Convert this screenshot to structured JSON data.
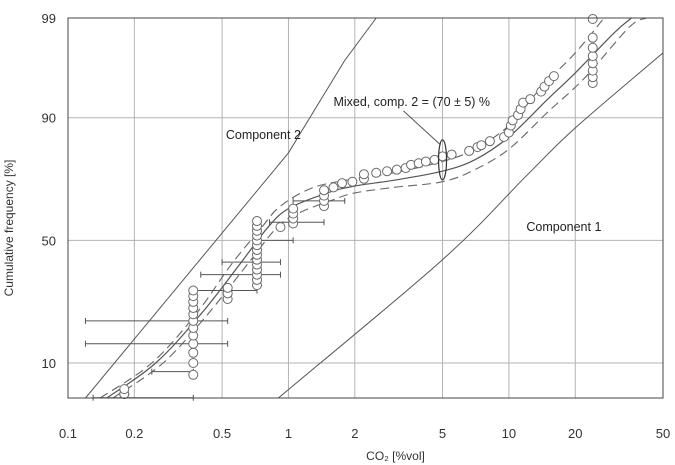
{
  "chart_data": {
    "type": "scatter",
    "title": "",
    "xlabel": "CO₂ [%vol]",
    "ylabel": "Cumulative frequency [%]",
    "x_scale": "log",
    "y_scale": "probability",
    "xlim": [
      0.1,
      50
    ],
    "ylim": [
      3,
      99
    ],
    "x_ticks": [
      0.1,
      0.2,
      0.5,
      1,
      2,
      5,
      10,
      20,
      50
    ],
    "x_tick_labels": [
      "0.1",
      "0.2",
      "0.5",
      "1",
      "2",
      "5",
      "10",
      "20",
      "50"
    ],
    "y_ticks": [
      10,
      50,
      90,
      99
    ],
    "y_tick_labels": [
      "10",
      "50",
      "90",
      "99"
    ],
    "grid": true,
    "series": [
      {
        "name": "",
        "kind": "points",
        "points": [
          [
            0.18,
            3.0
          ],
          [
            0.18,
            4.0
          ],
          [
            0.18,
            5.0
          ],
          [
            0.18,
            6.0
          ],
          [
            0.37,
            8.0
          ],
          [
            0.37,
            10.0
          ],
          [
            0.37,
            12.0
          ],
          [
            0.37,
            14.0
          ],
          [
            0.37,
            16.0
          ],
          [
            0.37,
            18.0
          ],
          [
            0.37,
            20.0
          ],
          [
            0.37,
            22.0
          ],
          [
            0.37,
            24.0
          ],
          [
            0.37,
            26.0
          ],
          [
            0.37,
            28.0
          ],
          [
            0.37,
            30.0
          ],
          [
            0.53,
            27.0
          ],
          [
            0.53,
            29.0
          ],
          [
            0.53,
            31.0
          ],
          [
            0.72,
            32.0
          ],
          [
            0.72,
            34.0
          ],
          [
            0.72,
            36.0
          ],
          [
            0.72,
            38.0
          ],
          [
            0.72,
            40.0
          ],
          [
            0.72,
            42.0
          ],
          [
            0.72,
            44.0
          ],
          [
            0.72,
            46.0
          ],
          [
            0.72,
            48.0
          ],
          [
            0.72,
            50.0
          ],
          [
            0.72,
            52.0
          ],
          [
            0.72,
            54.0
          ],
          [
            0.72,
            56.0
          ],
          [
            0.72,
            58.0
          ],
          [
            0.92,
            55.5
          ],
          [
            1.05,
            57.0
          ],
          [
            1.05,
            59.0
          ],
          [
            1.05,
            61.0
          ],
          [
            1.05,
            63.0
          ],
          [
            1.45,
            64.0
          ],
          [
            1.45,
            66.0
          ],
          [
            1.45,
            68.0
          ],
          [
            1.45,
            70.0
          ],
          [
            1.6,
            71.0
          ],
          [
            1.75,
            72.5
          ],
          [
            1.95,
            73.0
          ],
          [
            2.2,
            74.0
          ],
          [
            2.2,
            75.5
          ],
          [
            2.5,
            76.0
          ],
          [
            2.8,
            76.5
          ],
          [
            3.1,
            77.0
          ],
          [
            3.4,
            77.5
          ],
          [
            3.6,
            78.5
          ],
          [
            3.9,
            79.0
          ],
          [
            4.2,
            79.5
          ],
          [
            4.6,
            80.0
          ],
          [
            5.0,
            81.0
          ],
          [
            5.5,
            81.5
          ],
          [
            6.6,
            82.5
          ],
          [
            7.2,
            83.5
          ],
          [
            7.5,
            84.0
          ],
          [
            8.2,
            85.0
          ],
          [
            9.5,
            86.0
          ],
          [
            10.0,
            87.0
          ],
          [
            10.2,
            88.5
          ],
          [
            10.4,
            89.5
          ],
          [
            11.0,
            90.5
          ],
          [
            11.3,
            91.5
          ],
          [
            11.6,
            92.5
          ],
          [
            12.5,
            93.0
          ],
          [
            14.0,
            94.0
          ],
          [
            14.5,
            94.6
          ],
          [
            15.2,
            95.2
          ],
          [
            16.0,
            95.7
          ],
          [
            24.0,
            95.0
          ],
          [
            24.0,
            95.6
          ],
          [
            24.0,
            96.2
          ],
          [
            24.0,
            96.8
          ],
          [
            24.0,
            97.3
          ],
          [
            24.0,
            97.8
          ],
          [
            24.0,
            98.3
          ],
          [
            24.0,
            99.0
          ]
        ],
        "error_bars": [
          {
            "y": 5.0,
            "x_low": 0.13,
            "x_high": 0.37
          },
          {
            "y": 8.5,
            "x_low": 0.24,
            "x_high": 0.37
          },
          {
            "y": 14.0,
            "x_low": 0.12,
            "x_high": 0.53
          },
          {
            "y": 20.0,
            "x_low": 0.12,
            "x_high": 0.53
          },
          {
            "y": 30.0,
            "x_low": 0.37,
            "x_high": 0.72
          },
          {
            "y": 36.0,
            "x_low": 0.4,
            "x_high": 0.92
          },
          {
            "y": 41.0,
            "x_low": 0.5,
            "x_high": 0.92
          },
          {
            "y": 50.0,
            "x_low": 0.72,
            "x_high": 1.05
          },
          {
            "y": 57.5,
            "x_low": 0.82,
            "x_high": 1.45
          },
          {
            "y": 66.0,
            "x_low": 1.05,
            "x_high": 1.8
          }
        ]
      },
      {
        "name": "Component 2",
        "kind": "line",
        "points": [
          [
            0.12,
            3.0
          ],
          [
            1.0,
            82.0
          ],
          [
            1.25,
            90.0
          ],
          [
            1.8,
            97.0
          ],
          [
            2.5,
            99.0
          ]
        ]
      },
      {
        "name": "Component 1",
        "kind": "line",
        "points": [
          [
            0.9,
            3.0
          ],
          [
            5.0,
            42.0
          ],
          [
            12.0,
            75.0
          ],
          [
            20.0,
            88.0
          ],
          [
            50.0,
            97.5
          ]
        ]
      },
      {
        "name": "Mixed, comp. 2 = (70 ± 5) %",
        "kind": "line",
        "points": [
          [
            0.15,
            3.0
          ],
          [
            0.25,
            10.0
          ],
          [
            0.4,
            22.0
          ],
          [
            0.6,
            40.0
          ],
          [
            0.8,
            55.0
          ],
          [
            1.0,
            63.0
          ],
          [
            1.5,
            69.0
          ],
          [
            2.0,
            71.5
          ],
          [
            3.0,
            73.5
          ],
          [
            5.0,
            76.5
          ],
          [
            7.0,
            80.0
          ],
          [
            10.0,
            86.0
          ],
          [
            15.0,
            93.0
          ],
          [
            20.0,
            96.0
          ],
          [
            30.0,
            98.5
          ],
          [
            36.0,
            99.0
          ]
        ]
      },
      {
        "name": "",
        "kind": "confidence_band",
        "upper": [
          [
            0.14,
            3.0
          ],
          [
            0.24,
            10.0
          ],
          [
            0.38,
            22.0
          ],
          [
            0.55,
            40.0
          ],
          [
            0.75,
            55.0
          ],
          [
            0.92,
            64.0
          ],
          [
            1.3,
            71.0
          ],
          [
            2.0,
            74.0
          ],
          [
            3.0,
            76.0
          ],
          [
            5.0,
            79.5
          ],
          [
            7.0,
            83.0
          ],
          [
            10.0,
            88.5
          ],
          [
            14.0,
            94.5
          ],
          [
            20.0,
            97.5
          ],
          [
            27.0,
            99.0
          ]
        ],
        "lower": [
          [
            0.16,
            3.0
          ],
          [
            0.27,
            10.0
          ],
          [
            0.43,
            22.0
          ],
          [
            0.65,
            40.0
          ],
          [
            0.88,
            55.0
          ],
          [
            1.1,
            61.0
          ],
          [
            1.6,
            66.5
          ],
          [
            2.0,
            69.0
          ],
          [
            3.0,
            71.0
          ],
          [
            5.0,
            73.0
          ],
          [
            7.0,
            77.0
          ],
          [
            10.0,
            83.0
          ],
          [
            15.0,
            91.0
          ],
          [
            22.0,
            95.5
          ],
          [
            35.0,
            98.7
          ],
          [
            42.0,
            99.0
          ]
        ]
      }
    ],
    "annotations": [
      {
        "text": "Component 2",
        "x": 0.52,
        "y": 85.5
      },
      {
        "text": "Component 1",
        "x": 12.0,
        "y": 54.0
      },
      {
        "text": "Mixed, comp. 2 = (70 ± 5) %",
        "x": 1.6,
        "y": 92.0
      }
    ],
    "marker_ellipse": {
      "x": 5.0,
      "y": 80.0
    }
  }
}
